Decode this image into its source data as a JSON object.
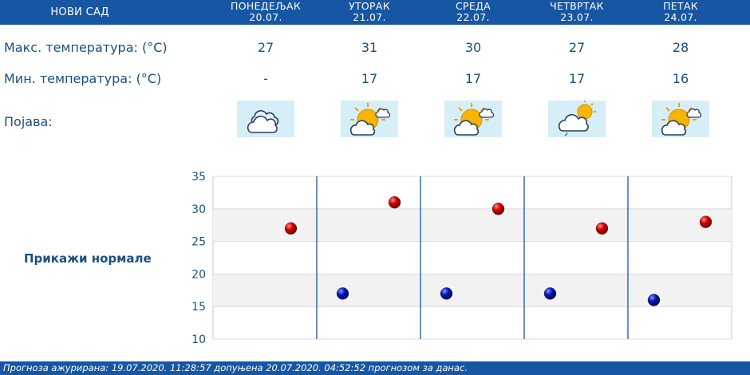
{
  "header": {
    "city": "НОВИ САД",
    "days": [
      {
        "name": "ПОНЕДЕЉАК",
        "date": "20.07."
      },
      {
        "name": "УТОРАК",
        "date": "21.07."
      },
      {
        "name": "СРЕДА",
        "date": "22.07."
      },
      {
        "name": "ЧЕТВРТАК",
        "date": "23.07."
      },
      {
        "name": "ПЕТАК",
        "date": "24.07."
      }
    ]
  },
  "rows": {
    "max_label": "Макс. температура: (°C)",
    "min_label": "Мин. температура: (°C)",
    "phenomenon_label": "Појава:",
    "max_values": [
      "27",
      "31",
      "30",
      "27",
      "28"
    ],
    "min_values": [
      "-",
      "17",
      "17",
      "17",
      "16"
    ],
    "icons": [
      "cloudy-icon",
      "partly-sunny-icon",
      "partly-sunny-icon",
      "cloud-drizzle-sun-icon",
      "partly-sunny-icon"
    ]
  },
  "show_normals_link": "Прикажи нормале",
  "chart_data": {
    "type": "scatter",
    "title": "",
    "xlabel": "",
    "ylabel": "",
    "ylim": [
      10,
      35
    ],
    "yticks": [
      "10",
      "15",
      "20",
      "25",
      "30",
      "35"
    ],
    "grid": "alternating horizontal bands",
    "categories": [
      "20.07.",
      "21.07.",
      "22.07.",
      "23.07.",
      "24.07."
    ],
    "series": [
      {
        "color": "#d40000",
        "values": [
          27,
          31,
          30,
          27,
          28
        ]
      },
      {
        "color": "#0a14b8",
        "values": [
          null,
          17,
          17,
          17,
          16
        ]
      }
    ]
  },
  "footer": {
    "text": "Прогноза ажурирана:  19.07.2020. 11:28:57 допуњена 20.07.2020. 04:52:52 прогнозом за данас."
  }
}
